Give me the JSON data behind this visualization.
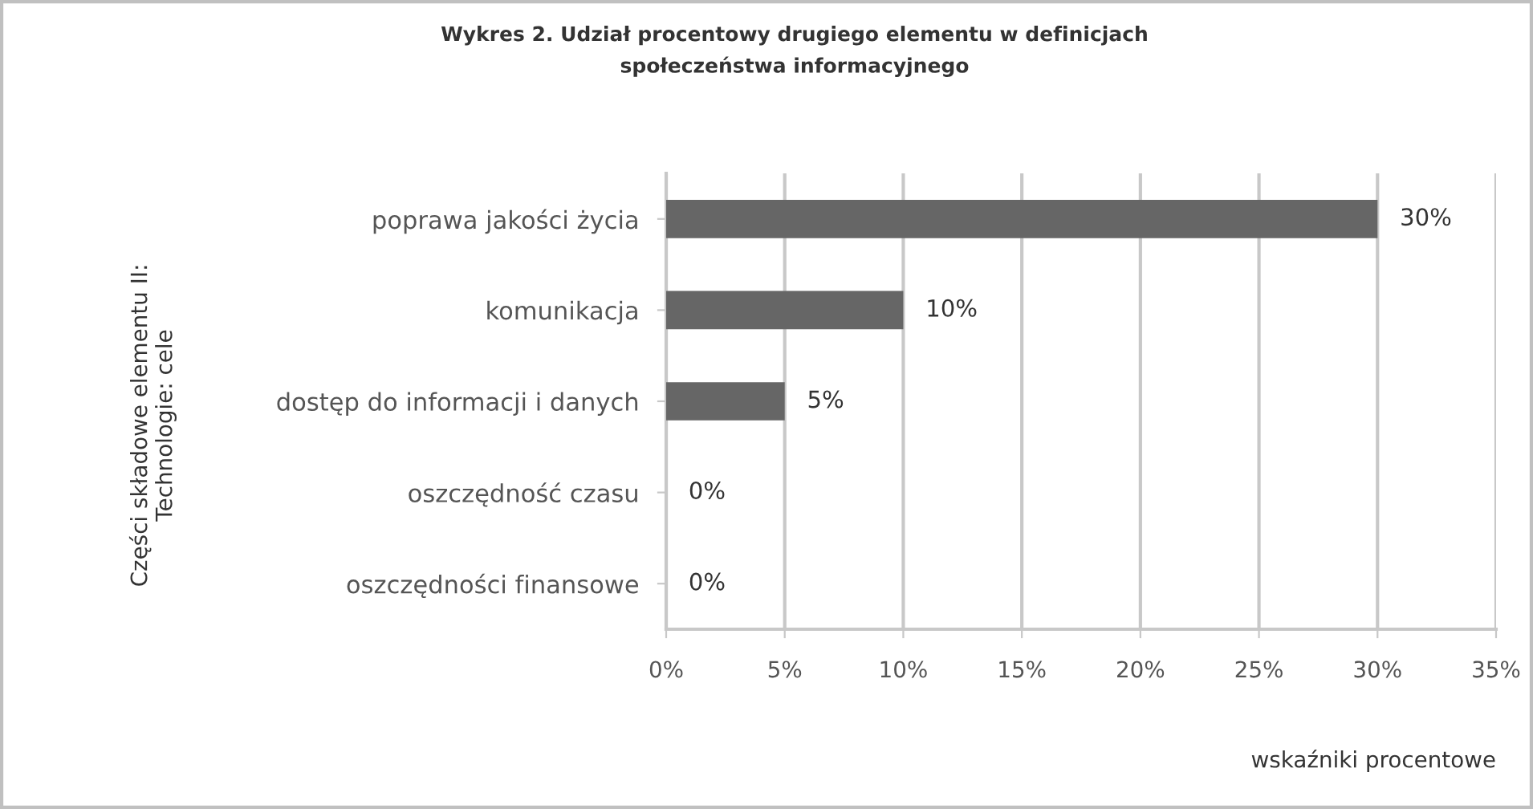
{
  "chart_data": {
    "type": "bar",
    "orientation": "horizontal",
    "title": "Wykres 2. Udział procentowy drugiego elementu w definicjach\nspołeczeństwa informacyjnego",
    "xlabel": "wskaźniki procentowe",
    "ylabel": "Części składowe elementu II:\nTechnologie: cele",
    "categories": [
      "poprawa jakości życia",
      "komunikacja",
      "dostęp do informacji i danych",
      "oszczędność czasu",
      "oszczędności finansowe"
    ],
    "values": [
      30,
      10,
      5,
      0,
      0
    ],
    "value_labels": [
      "30%",
      "10%",
      "5%",
      "0%",
      "0%"
    ],
    "color": "#666666",
    "xlim": [
      0,
      35
    ],
    "xticks": [
      {
        "value": 0,
        "label": "0%"
      },
      {
        "value": 5,
        "label": "5%"
      },
      {
        "value": 10,
        "label": "10%"
      },
      {
        "value": 15,
        "label": "15%"
      },
      {
        "value": 20,
        "label": "20%"
      },
      {
        "value": 25,
        "label": "25%"
      },
      {
        "value": 30,
        "label": "30%"
      },
      {
        "value": 35,
        "label": "35%"
      }
    ],
    "grid": "x",
    "legend": false
  }
}
